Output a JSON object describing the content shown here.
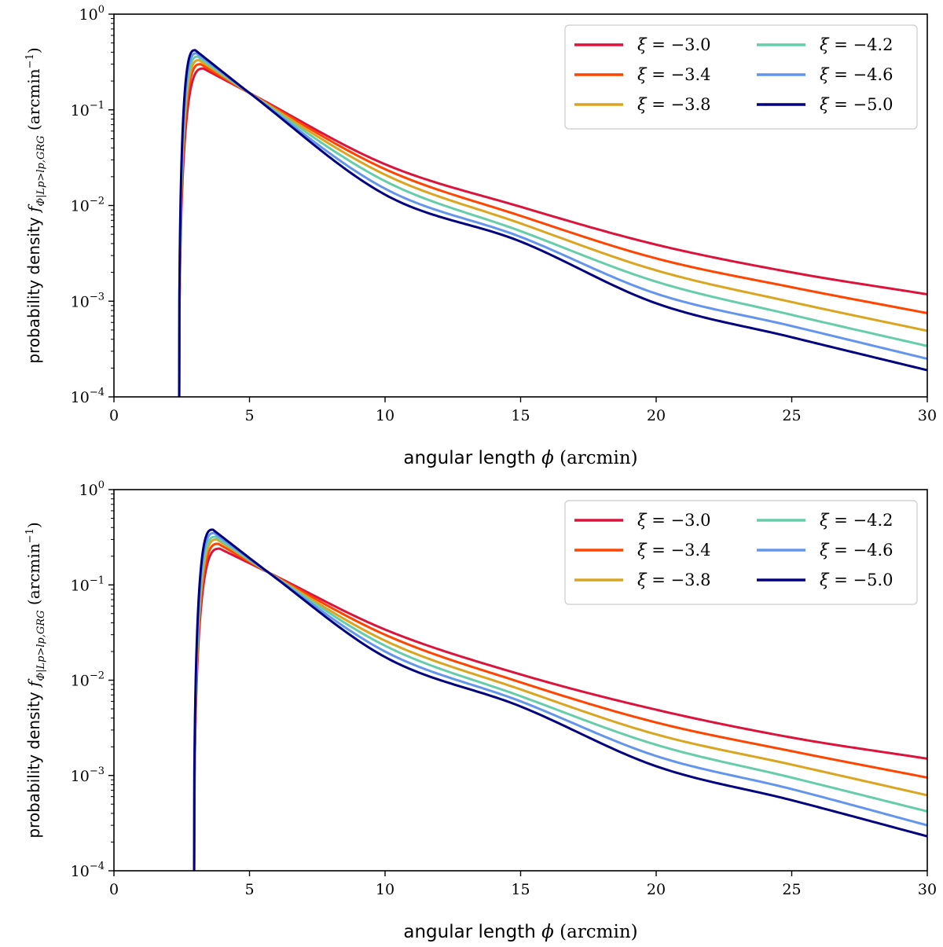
{
  "chart_data": [
    {
      "type": "line",
      "xlabel": "angular length ϕ (arcmin)",
      "ylabel": "probability density fΦ|Lp>lp,GRG (arcmin⁻¹)",
      "ylabel_parts": {
        "text": "probability density ",
        "f": "f",
        "sub": "Φ|Lp>lp,GRG",
        "unit": " (arcmin",
        "unit_exp": "−1",
        "unit_close": ")"
      },
      "xlabel_parts": {
        "text": "angular length ",
        "phi": "ϕ",
        "unit": " (arcmin)"
      },
      "xlim": [
        0,
        30
      ],
      "ylim": [
        0.0001,
        1
      ],
      "yscale": "log",
      "x_ticks": [
        "0",
        "5",
        "10",
        "15",
        "20",
        "25",
        "30"
      ],
      "y_ticks": [
        {
          "base": "10",
          "exp": "0"
        },
        {
          "base": "10",
          "exp": "−1"
        },
        {
          "base": "10",
          "exp": "−2"
        },
        {
          "base": "10",
          "exp": "−3"
        },
        {
          "base": "10",
          "exp": "−4"
        }
      ],
      "legend_position": "top-right",
      "onset": 2.4,
      "series": [
        {
          "name": "ξ = −3.0",
          "xi_label": "ξ",
          "value_label": "= −3.0",
          "color": "#dc143c",
          "peak_x": 3.3,
          "peak_y": 0.27,
          "points": [
            [
              5,
              0.15
            ],
            [
              10,
              0.027
            ],
            [
              15,
              0.0097
            ],
            [
              20,
              0.0039
            ],
            [
              25,
              0.002
            ],
            [
              30,
              0.00118
            ]
          ]
        },
        {
          "name": "ξ = −3.4",
          "xi_label": "ξ",
          "value_label": "= −3.4",
          "color": "#ff4500",
          "peak_x": 3.2,
          "peak_y": 0.3,
          "points": [
            [
              5,
              0.15
            ],
            [
              10,
              0.024
            ],
            [
              15,
              0.0078
            ],
            [
              20,
              0.0028
            ],
            [
              25,
              0.0014
            ],
            [
              30,
              0.00075
            ]
          ]
        },
        {
          "name": "ξ = −3.8",
          "xi_label": "ξ",
          "value_label": "= −3.8",
          "color": "#daa520",
          "peak_x": 3.15,
          "peak_y": 0.33,
          "points": [
            [
              5,
              0.15
            ],
            [
              10,
              0.021
            ],
            [
              15,
              0.0065
            ],
            [
              20,
              0.0021
            ],
            [
              25,
              0.00098
            ],
            [
              30,
              0.00049
            ]
          ]
        },
        {
          "name": "ξ = −4.2",
          "xi_label": "ξ",
          "value_label": "= −4.2",
          "color": "#66cdaa",
          "peak_x": 3.1,
          "peak_y": 0.36,
          "points": [
            [
              5,
              0.15
            ],
            [
              10,
              0.018
            ],
            [
              15,
              0.0054
            ],
            [
              20,
              0.0016
            ],
            [
              25,
              0.00072
            ],
            [
              30,
              0.00034
            ]
          ]
        },
        {
          "name": "ξ = −4.6",
          "xi_label": "ξ",
          "value_label": "= −4.6",
          "color": "#6495ed",
          "peak_x": 3.05,
          "peak_y": 0.39,
          "points": [
            [
              5,
              0.15
            ],
            [
              10,
              0.015
            ],
            [
              15,
              0.0047
            ],
            [
              20,
              0.0012
            ],
            [
              25,
              0.00055
            ],
            [
              30,
              0.00025
            ]
          ]
        },
        {
          "name": "ξ = −5.0",
          "xi_label": "ξ",
          "value_label": "= −5.0",
          "color": "#000080",
          "peak_x": 3.0,
          "peak_y": 0.42,
          "points": [
            [
              5,
              0.15
            ],
            [
              10,
              0.013
            ],
            [
              15,
              0.0042
            ],
            [
              20,
              0.00095
            ],
            [
              25,
              0.00042
            ],
            [
              30,
              0.00019
            ]
          ]
        }
      ]
    },
    {
      "type": "line",
      "xlabel": "angular length ϕ (arcmin)",
      "ylabel": "probability density fΦ|Lp>lp,GRG (arcmin⁻¹)",
      "ylabel_parts": {
        "text": "probability density ",
        "f": "f",
        "sub": "Φ|Lp>lp,GRG",
        "unit": " (arcmin",
        "unit_exp": "−1",
        "unit_close": ")"
      },
      "xlabel_parts": {
        "text": "angular length ",
        "phi": "ϕ",
        "unit": " (arcmin)"
      },
      "xlim": [
        0,
        30
      ],
      "ylim": [
        0.0001,
        1
      ],
      "yscale": "log",
      "x_ticks": [
        "0",
        "5",
        "10",
        "15",
        "20",
        "25",
        "30"
      ],
      "y_ticks": [
        {
          "base": "10",
          "exp": "0"
        },
        {
          "base": "10",
          "exp": "−1"
        },
        {
          "base": "10",
          "exp": "−2"
        },
        {
          "base": "10",
          "exp": "−3"
        },
        {
          "base": "10",
          "exp": "−4"
        }
      ],
      "legend_position": "top-right",
      "onset": 2.95,
      "series": [
        {
          "name": "ξ = −3.0",
          "xi_label": "ξ",
          "value_label": "= −3.0",
          "color": "#dc143c",
          "peak_x": 3.9,
          "peak_y": 0.24,
          "points": [
            [
              5.7,
              0.135
            ],
            [
              10,
              0.034
            ],
            [
              15,
              0.0115
            ],
            [
              20,
              0.0049
            ],
            [
              25,
              0.0025
            ],
            [
              30,
              0.0015
            ]
          ]
        },
        {
          "name": "ξ = −3.4",
          "xi_label": "ξ",
          "value_label": "= −3.4",
          "color": "#ff4500",
          "peak_x": 3.85,
          "peak_y": 0.27,
          "points": [
            [
              5.7,
              0.135
            ],
            [
              10,
              0.03
            ],
            [
              15,
              0.0095
            ],
            [
              20,
              0.0036
            ],
            [
              25,
              0.0018
            ],
            [
              30,
              0.00095
            ]
          ]
        },
        {
          "name": "ξ = −3.8",
          "xi_label": "ξ",
          "value_label": "= −3.8",
          "color": "#daa520",
          "peak_x": 3.8,
          "peak_y": 0.3,
          "points": [
            [
              5.7,
              0.135
            ],
            [
              10,
              0.026
            ],
            [
              15,
              0.008
            ],
            [
              20,
              0.0027
            ],
            [
              25,
              0.0013
            ],
            [
              30,
              0.00062
            ]
          ]
        },
        {
          "name": "ξ = −4.2",
          "xi_label": "ξ",
          "value_label": "= −4.2",
          "color": "#66cdaa",
          "peak_x": 3.75,
          "peak_y": 0.32,
          "points": [
            [
              5.7,
              0.135
            ],
            [
              10,
              0.023
            ],
            [
              15,
              0.0068
            ],
            [
              20,
              0.0021
            ],
            [
              25,
              0.00095
            ],
            [
              30,
              0.00042
            ]
          ]
        },
        {
          "name": "ξ = −4.6",
          "xi_label": "ξ",
          "value_label": "= −4.6",
          "color": "#6495ed",
          "peak_x": 3.7,
          "peak_y": 0.35,
          "points": [
            [
              5.7,
              0.135
            ],
            [
              10,
              0.02
            ],
            [
              15,
              0.006
            ],
            [
              20,
              0.0016
            ],
            [
              25,
              0.00072
            ],
            [
              30,
              0.0003
            ]
          ]
        },
        {
          "name": "ξ = −5.0",
          "xi_label": "ξ",
          "value_label": "= −5.0",
          "color": "#000080",
          "peak_x": 3.65,
          "peak_y": 0.38,
          "points": [
            [
              5.7,
              0.135
            ],
            [
              10,
              0.0175
            ],
            [
              15,
              0.0053
            ],
            [
              20,
              0.00125
            ],
            [
              25,
              0.00055
            ],
            [
              30,
              0.00023
            ]
          ]
        }
      ]
    }
  ]
}
